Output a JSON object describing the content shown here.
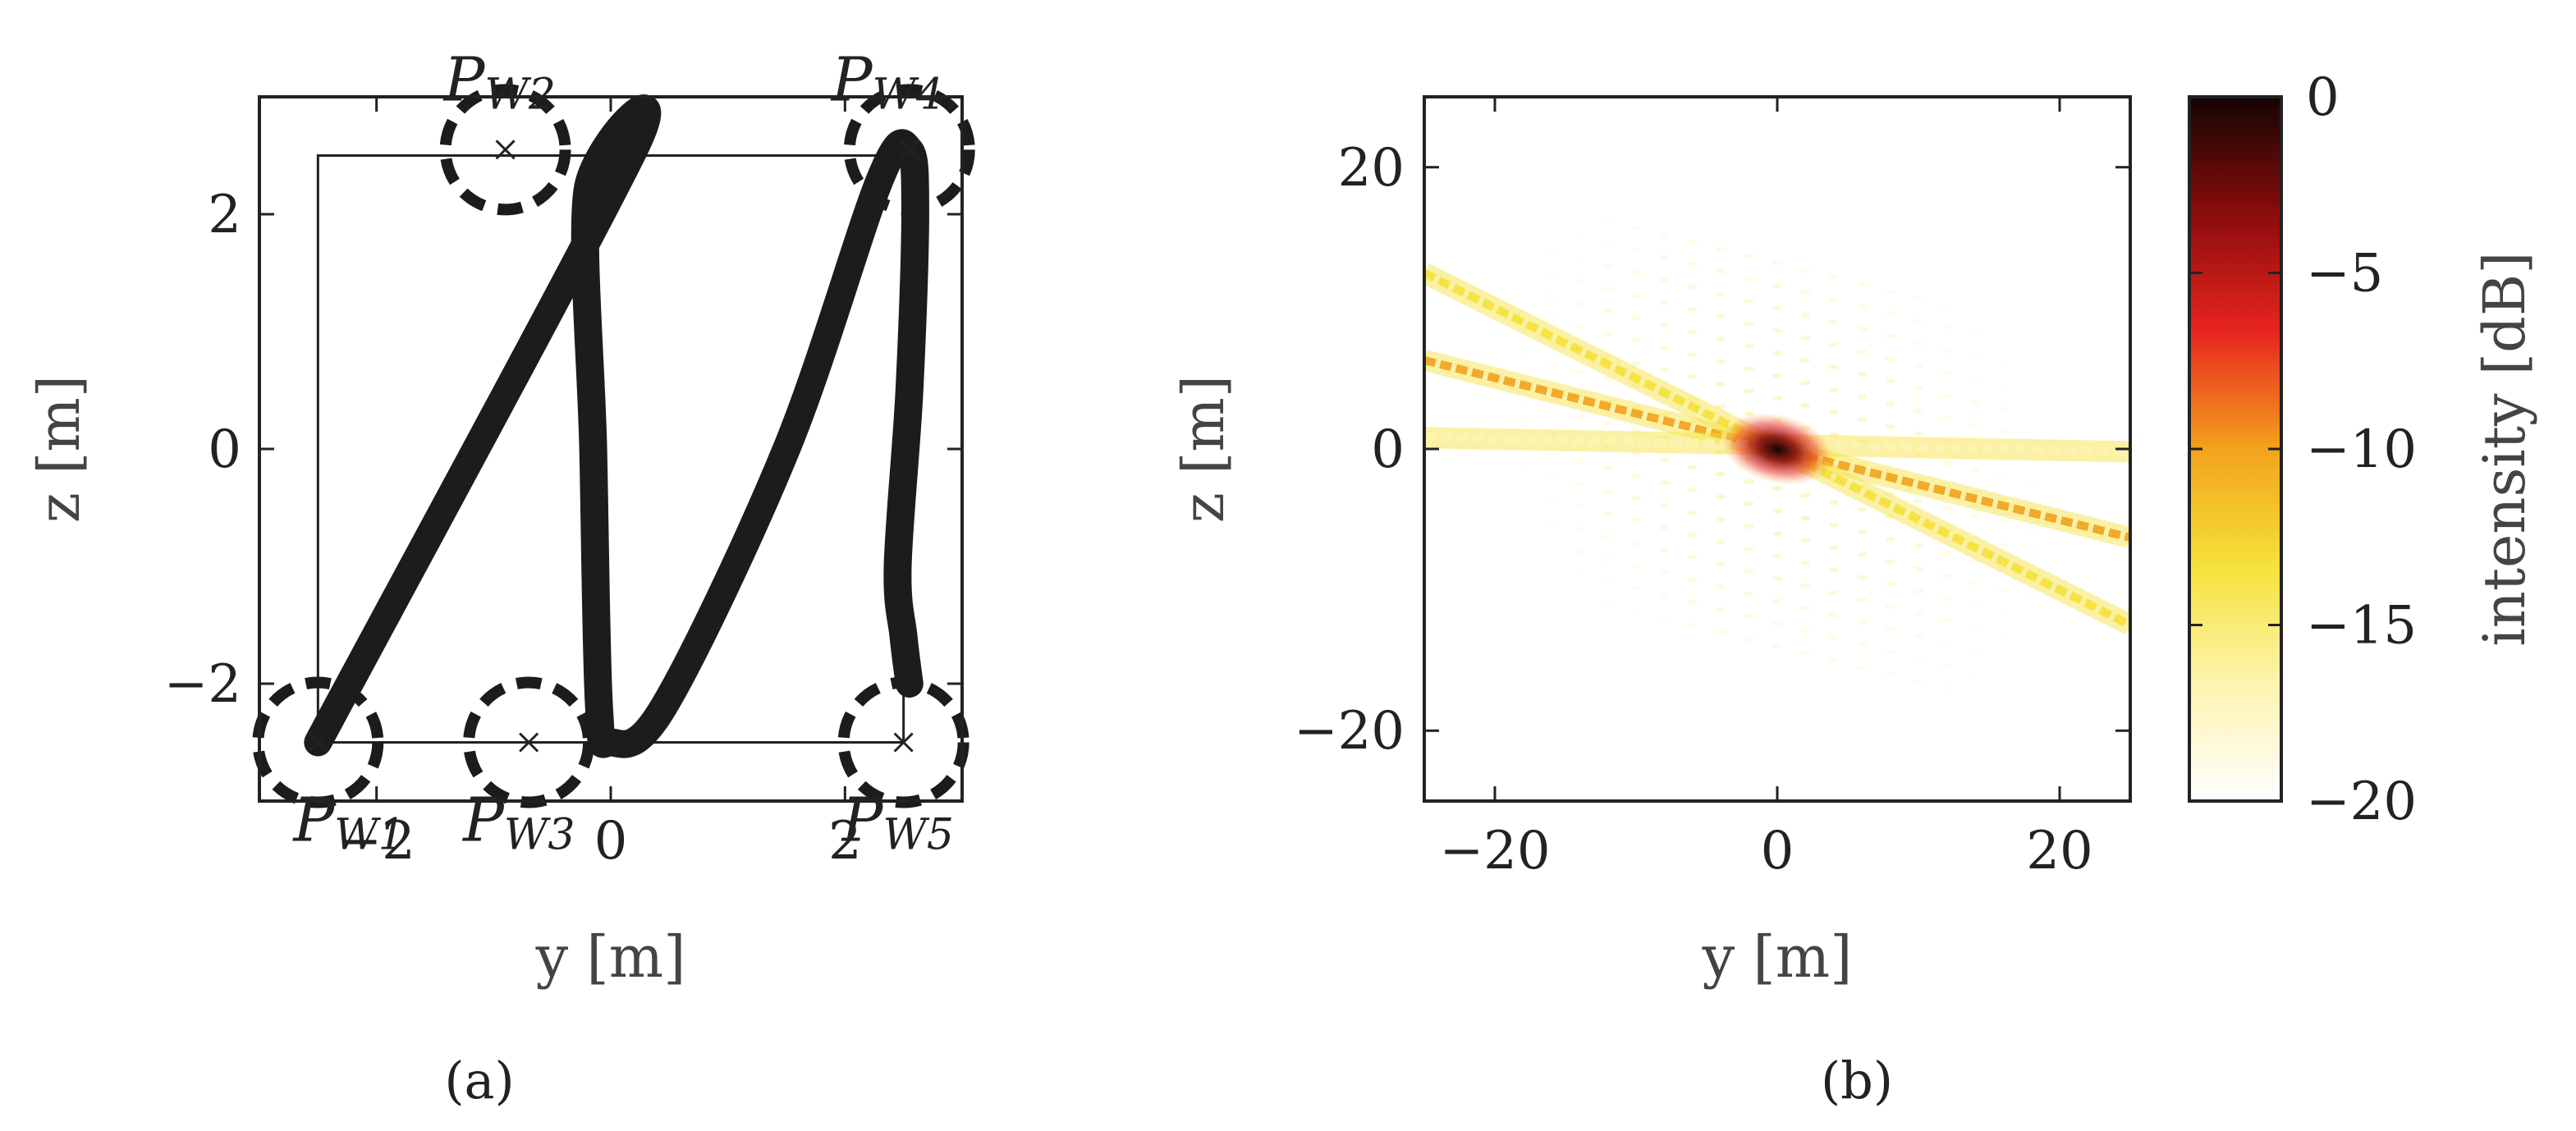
{
  "chart_data": [
    {
      "type": "line",
      "panel_label": "(a)",
      "xlabel": "y [m]",
      "ylabel": "z [m]",
      "xlim": [
        -3,
        3
      ],
      "ylim": [
        -3,
        3
      ],
      "x_ticks": [
        -2,
        0,
        2
      ],
      "y_ticks": [
        -2,
        0,
        2
      ],
      "x_tick_labels": [
        "−2",
        "0",
        "2"
      ],
      "y_tick_labels": [
        "−2",
        "0",
        "2"
      ],
      "grid": false,
      "rectangle": {
        "y": [
          -2.5,
          2.5
        ],
        "z": [
          -2.5,
          2.5
        ]
      },
      "trajectory": {
        "y": [
          -2.5,
          0.2,
          -0.2,
          -0.15,
          -0.1,
          0.0,
          0.45,
          1.5,
          2.3,
          2.55,
          2.6,
          2.55,
          2.45,
          2.5,
          2.55
        ],
        "z": [
          -2.5,
          2.55,
          2.2,
          0.0,
          -2.2,
          -2.5,
          -2.2,
          0.0,
          2.3,
          2.55,
          2.0,
          0.5,
          -1.0,
          -1.6,
          -2.0
        ]
      },
      "waypoints": [
        {
          "name": "P_W1",
          "label": "P",
          "sub": "W1",
          "y": -2.5,
          "z": -2.5
        },
        {
          "name": "P_W2",
          "label": "P",
          "sub": "W2",
          "y": -0.9,
          "z": 2.55
        },
        {
          "name": "P_W3",
          "label": "P",
          "sub": "W3",
          "y": -0.7,
          "z": -2.5
        },
        {
          "name": "P_W4",
          "label": "P",
          "sub": "W4",
          "y": 2.55,
          "z": 2.55
        },
        {
          "name": "P_W5",
          "label": "P",
          "sub": "W5",
          "y": 2.5,
          "z": -2.5
        }
      ]
    },
    {
      "type": "heatmap",
      "panel_label": "(b)",
      "xlabel": "y [m]",
      "ylabel": "z [m]",
      "xlim": [
        -25,
        25
      ],
      "ylim": [
        -25,
        25
      ],
      "x_ticks": [
        -20,
        0,
        20
      ],
      "y_ticks": [
        -20,
        0,
        20
      ],
      "x_tick_labels": [
        "−20",
        "0",
        "20"
      ],
      "y_tick_labels": [
        "−20",
        "0",
        "20"
      ],
      "colorbar": {
        "label": "intensity [dB]",
        "range": [
          -20,
          0
        ],
        "ticks": [
          0,
          -5,
          -10,
          -15,
          -20
        ],
        "tick_labels": [
          "0",
          "−5",
          "−10",
          "−15",
          "−20"
        ],
        "colors": [
          "#ffffff",
          "#fdf4b0",
          "#f5e23a",
          "#f3a21c",
          "#e8251f",
          "#8b0c0c",
          "#140404"
        ]
      },
      "beams": [
        {
          "name": "beam-main",
          "from": [
            -25,
            6.3
          ],
          "to": [
            25,
            -6.3
          ],
          "level_db": -9
        },
        {
          "name": "beam-steep",
          "from": [
            -25,
            12.5
          ],
          "to": [
            25,
            -12.5
          ],
          "level_db": -14
        },
        {
          "name": "beam-flat",
          "from": [
            -25,
            0.8
          ],
          "to": [
            25,
            -0.2
          ],
          "level_db": -16
        }
      ],
      "peak": {
        "y": 0,
        "z": 0,
        "level_db": 0
      }
    }
  ]
}
